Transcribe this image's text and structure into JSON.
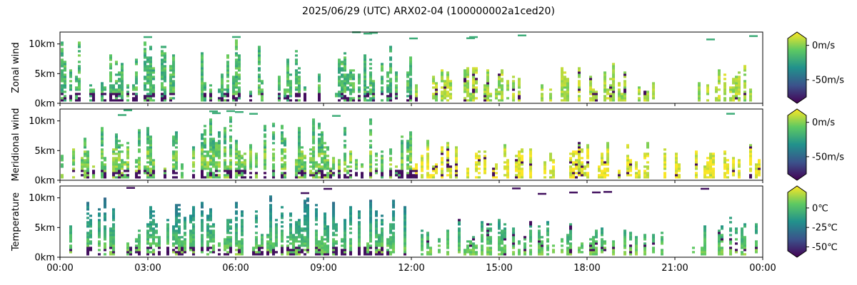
{
  "chart_data": {
    "type": "heatmap",
    "title": "2025/06/29 (UTC) ARX02-04 (100000002a1ced20)",
    "x_ticks": [
      "00:00",
      "03:00",
      "06:00",
      "09:00",
      "12:00",
      "15:00",
      "18:00",
      "21:00",
      "00:00"
    ],
    "x_range_hours": [
      0,
      24
    ],
    "y_range_km": [
      0,
      12
    ],
    "colormap": "viridis",
    "colormap_stops": [
      "#440154",
      "#3b528b",
      "#21918c",
      "#5ec962",
      "#fde725"
    ],
    "panels": [
      {
        "ylabel": "Zonal wind",
        "y_ticks": [
          "0km",
          "5km",
          "10km"
        ],
        "colorbar": {
          "ticks": [
            "0m/s",
            "-50m/s"
          ],
          "tick_values": [
            0,
            -50
          ],
          "range": [
            -75,
            10
          ]
        }
      },
      {
        "ylabel": "Meridional wind",
        "y_ticks": [
          "0km",
          "5km",
          "10km"
        ],
        "colorbar": {
          "ticks": [
            "0m/s",
            "-50m/s"
          ],
          "tick_values": [
            0,
            -50
          ],
          "range": [
            -75,
            10
          ]
        }
      },
      {
        "ylabel": "Temperature",
        "y_ticks": [
          "0km",
          "5km",
          "10km"
        ],
        "colorbar": {
          "ticks": [
            "0℃",
            "-25℃",
            "-50℃"
          ],
          "tick_values": [
            0,
            -25,
            -50
          ],
          "range": [
            -55,
            20
          ]
        }
      }
    ]
  }
}
